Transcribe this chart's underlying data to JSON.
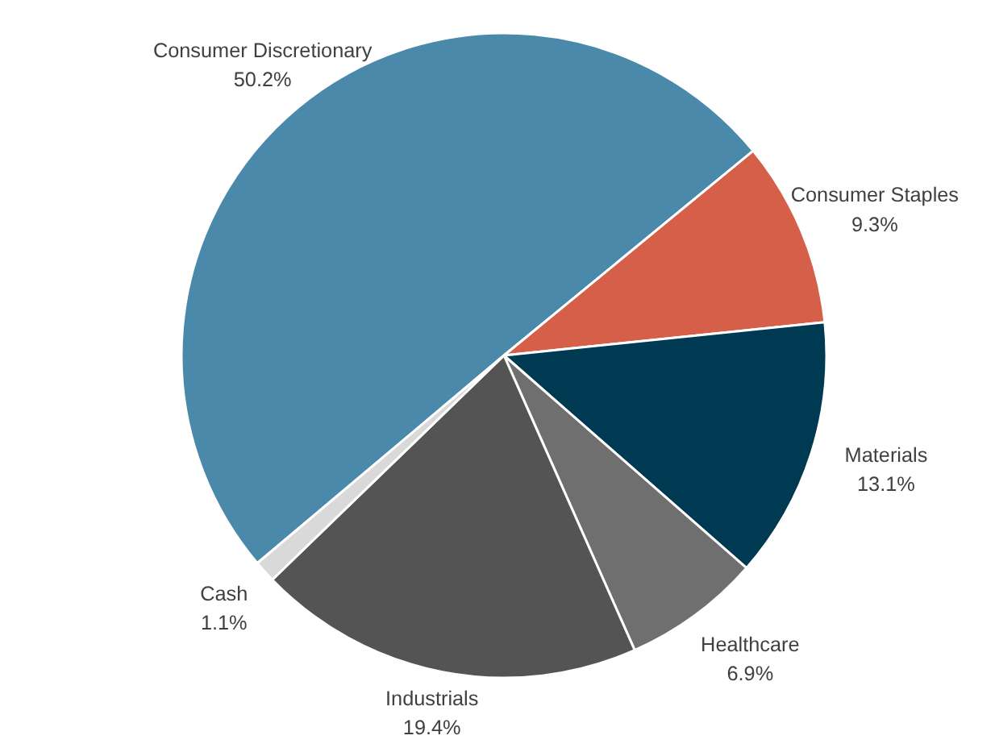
{
  "chart_data": {
    "type": "pie",
    "categories": [
      "Consumer Discretionary",
      "Consumer Staples",
      "Materials",
      "Healthcare",
      "Industrials",
      "Cash"
    ],
    "values": [
      50.2,
      9.3,
      13.1,
      6.9,
      19.4,
      1.1
    ],
    "value_labels": [
      "50.2%",
      "9.3%",
      "13.1%",
      "6.9%",
      "19.4%",
      "1.1%"
    ],
    "colors": [
      "#4a89aa",
      "#d65f4a",
      "#003a52",
      "#6f6f6f",
      "#545454",
      "#d9d9d9"
    ],
    "legend": false
  }
}
